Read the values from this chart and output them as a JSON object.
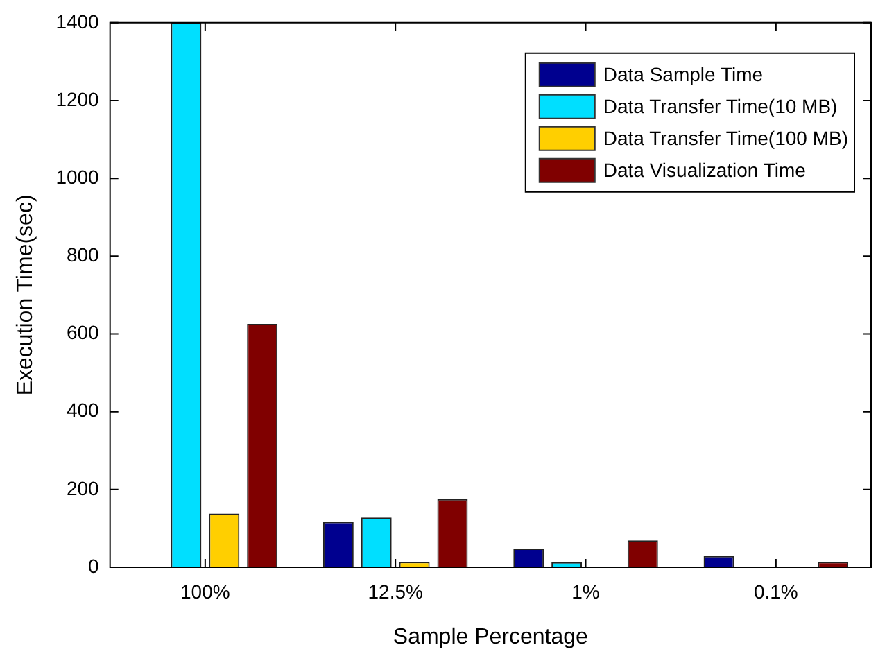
{
  "chart_data": {
    "type": "bar",
    "xlabel": "Sample Percentage",
    "ylabel": "Execution Time(sec)",
    "categories": [
      "100%",
      "12.5%",
      "1%",
      "0.1%"
    ],
    "series": [
      {
        "name": "Data Sample Time",
        "color": "#00008f",
        "values": [
          0,
          117,
          48,
          29
        ]
      },
      {
        "name": "Data Transfer Time(10 MB)",
        "color": "#00dfff",
        "values": [
          1400,
          128,
          13,
          1
        ]
      },
      {
        "name": "Data Transfer Time(100 MB)",
        "color": "#ffcf00",
        "values": [
          138,
          14,
          2,
          1
        ]
      },
      {
        "name": "Data Visualization Time",
        "color": "#800000",
        "values": [
          626,
          175,
          69,
          14
        ]
      }
    ],
    "ylim": [
      0,
      1400
    ],
    "yticks": [
      0,
      200,
      400,
      600,
      800,
      1000,
      1200,
      1400
    ],
    "grid": false,
    "legend": "top right"
  }
}
